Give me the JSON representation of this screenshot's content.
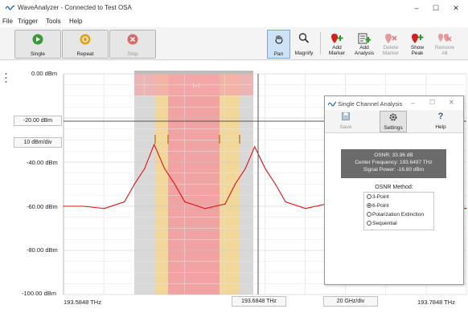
{
  "window": {
    "title": "WaveAnalyzer - Connected to Test OSA"
  },
  "menu": [
    "File",
    "Trigger",
    "Tools",
    "Help"
  ],
  "toolbar": {
    "single": "Single",
    "repeat": "Repeat",
    "stop": "Stop",
    "pan": "Pan",
    "magnify": "Magnify",
    "add_marker": [
      "Add",
      "Marker"
    ],
    "add_analysis": [
      "Add",
      "Analysis"
    ],
    "delete_marker": [
      "Delete",
      "Marker"
    ],
    "show_peak": [
      "Show",
      "Peak"
    ],
    "remove_all": [
      "Remove",
      "All"
    ]
  },
  "chart": {
    "y_ticks": [
      "0.00 dBm",
      "-20.00 dBm",
      "-40.00 dBm",
      "-60.00 dBm",
      "-80.00 dBm",
      "-100.00 dBm"
    ],
    "y_scale": "10 dBm/div",
    "x_left": "193.5848 THz",
    "x_center": "193.6848 THz",
    "x_span": "20 GHz/div",
    "x_right": "193.7848 THz",
    "colors": {
      "trace": "#e01010",
      "band_gray": "#d0d0d0",
      "band_yellow": "#f4d79a",
      "band_red": "#f29a9a"
    }
  },
  "chart_data": {
    "type": "line",
    "xlabel": "",
    "ylabel": "",
    "xlim": [
      193.5848,
      193.7848
    ],
    "ylim": [
      -100,
      0
    ],
    "x_tick_labels": [
      "193.5848 THz",
      "193.6848 THz",
      "193.7848 THz"
    ],
    "y_tick_labels": [
      "0.00 dBm",
      "-20.00 dBm",
      "-40.00 dBm",
      "-60.00 dBm",
      "-80.00 dBm",
      "-100.00 dBm"
    ],
    "grid": true,
    "series": [
      {
        "name": "",
        "x": [
          193.5848,
          193.595,
          193.605,
          193.615,
          193.62,
          193.625,
          193.6298,
          193.635,
          193.64,
          193.645,
          193.655,
          193.665,
          193.67,
          193.675,
          193.6797,
          193.685,
          193.69,
          193.695,
          193.705,
          193.715,
          193.72,
          193.725,
          193.7297,
          193.735,
          193.74,
          193.745,
          193.755,
          193.765,
          193.7848
        ],
        "y": [
          -60,
          -60,
          -61,
          -58,
          -50,
          -43,
          -32,
          -43,
          -50,
          -58,
          -61,
          -59,
          -50,
          -43,
          -33,
          -43,
          -50,
          -58,
          -61,
          -59,
          -50,
          -43,
          -32,
          -43,
          -50,
          -58,
          -61,
          -60,
          -61
        ]
      }
    ]
  },
  "dialog": {
    "title": "Single Channel Analysis",
    "save": "Save",
    "settings": "Settings",
    "help": "Help",
    "result": [
      "OSNR: 33.96 dB",
      "Center Frequency: 193.6497 THz",
      "Signal Power: -16.80 dBm"
    ],
    "method_title": "OSNR Method:",
    "methods": [
      "3-Point",
      "6-Point",
      "Polarization Extinction",
      "Sequential"
    ],
    "selected_method": 1
  }
}
